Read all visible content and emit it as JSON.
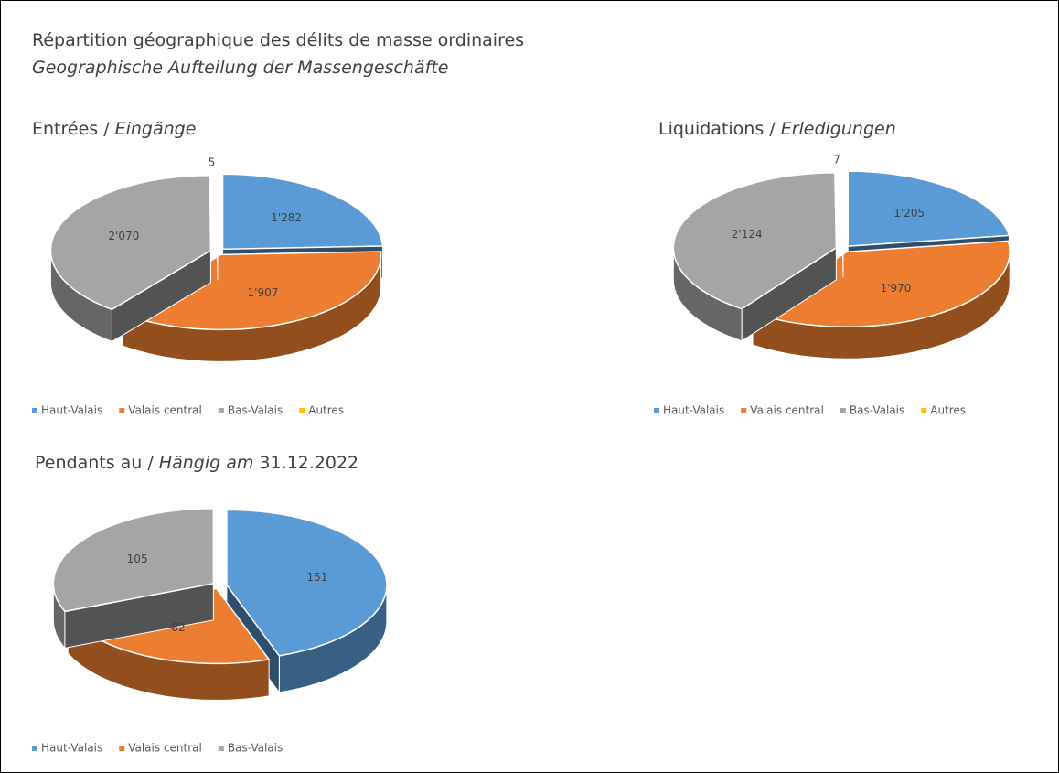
{
  "title": "Répartition géographique des délits de masse ordinaires",
  "subtitle": "Geographische Aufteilung der Massengeschäfte",
  "chart_data": [
    {
      "type": "pie",
      "title": [
        "Entrées /",
        "Eingänge"
      ],
      "categories": [
        "Haut-Valais",
        "Valais central",
        "Bas-Valais",
        "Autres"
      ],
      "values": [
        1282,
        1907,
        2070,
        5
      ],
      "value_labels": [
        "1'282",
        "1'907",
        "2'070",
        "5"
      ],
      "colors": [
        "#5b9bd5",
        "#ed7d31",
        "#a5a5a5",
        "#ffc000"
      ]
    },
    {
      "type": "pie",
      "title": [
        "Liquidations /",
        "Erledigungen"
      ],
      "categories": [
        "Haut-Valais",
        "Valais central",
        "Bas-Valais",
        "Autres"
      ],
      "values": [
        1205,
        1970,
        2124,
        7
      ],
      "value_labels": [
        "1'205",
        "1'970",
        "2'124",
        "7"
      ],
      "colors": [
        "#5b9bd5",
        "#ed7d31",
        "#a5a5a5",
        "#ffc000"
      ]
    },
    {
      "type": "pie",
      "title": [
        "Pendants au /",
        "Hängig am",
        "31.12.2022"
      ],
      "categories": [
        "Haut-Valais",
        "Valais central",
        "Bas-Valais"
      ],
      "values": [
        151,
        82,
        105
      ],
      "colors": [
        "#5b9bd5",
        "#ed7d31",
        "#a5a5a5"
      ]
    }
  ]
}
